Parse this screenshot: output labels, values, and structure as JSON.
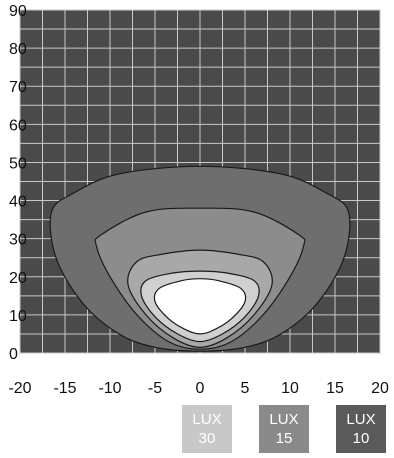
{
  "chart_data": {
    "type": "area",
    "title": "",
    "xlabel": "",
    "ylabel": "",
    "xlim": [
      -20,
      20
    ],
    "ylim": [
      0,
      90
    ],
    "x_ticks": [
      -20,
      -15,
      -10,
      -5,
      0,
      5,
      10,
      15,
      20
    ],
    "y_ticks": [
      0,
      10,
      20,
      30,
      40,
      50,
      60,
      70,
      80,
      90
    ],
    "grid": true,
    "background_color": "#4a4a4a",
    "grid_color": "#c8c8c8",
    "series": [
      {
        "color": "#6e6e6e",
        "points": [
          [
            0,
            49
          ],
          [
            9,
            47
          ],
          [
            14,
            42
          ],
          [
            16.5,
            37
          ],
          [
            16,
            25
          ],
          [
            13,
            13
          ],
          [
            9,
            5
          ],
          [
            5,
            1.5
          ],
          [
            0,
            0.5
          ],
          [
            -5,
            1.5
          ],
          [
            -9,
            5
          ],
          [
            -13,
            13
          ],
          [
            -16,
            25
          ],
          [
            -16.5,
            37
          ],
          [
            -14,
            42
          ],
          [
            -9,
            47
          ]
        ]
      },
      {
        "color": "#8c8c8c",
        "points": [
          [
            0,
            38
          ],
          [
            6,
            37
          ],
          [
            11,
            31
          ],
          [
            11.5,
            28
          ],
          [
            10,
            20
          ],
          [
            7,
            10
          ],
          [
            3.5,
            3
          ],
          [
            0,
            1
          ],
          [
            -3.5,
            3
          ],
          [
            -7,
            10
          ],
          [
            -10,
            20
          ],
          [
            -11.5,
            28
          ],
          [
            -11,
            31
          ],
          [
            -6,
            37
          ]
        ]
      },
      {
        "color": "#a8a8a8",
        "points": [
          [
            0,
            27
          ],
          [
            4,
            26
          ],
          [
            7,
            24
          ],
          [
            8,
            18
          ],
          [
            6,
            10
          ],
          [
            3,
            4
          ],
          [
            0,
            1.5
          ],
          [
            -3,
            4
          ],
          [
            -6,
            10
          ],
          [
            -8,
            18
          ],
          [
            -7,
            24
          ],
          [
            -4,
            26
          ]
        ]
      },
      {
        "color": "#d0d0d0",
        "points": [
          [
            0,
            21.5
          ],
          [
            3,
            21
          ],
          [
            6,
            19
          ],
          [
            6.5,
            15
          ],
          [
            5,
            9.5
          ],
          [
            2.5,
            5
          ],
          [
            0,
            3
          ],
          [
            -2.5,
            5
          ],
          [
            -5,
            9.5
          ],
          [
            -6.5,
            15
          ],
          [
            -6,
            19
          ],
          [
            -3,
            21
          ]
        ]
      },
      {
        "color": "#ffffff",
        "points": [
          [
            0,
            19.5
          ],
          [
            2,
            19
          ],
          [
            4.5,
            17
          ],
          [
            5,
            13.5
          ],
          [
            3.5,
            9
          ],
          [
            1.5,
            6
          ],
          [
            0,
            5
          ],
          [
            -1.5,
            6
          ],
          [
            -3.5,
            9
          ],
          [
            -5,
            13.5
          ],
          [
            -4.5,
            17
          ],
          [
            -2,
            19
          ]
        ]
      }
    ]
  },
  "legend": [
    {
      "top": "LUX",
      "bottom": "30",
      "color": "#c8c8c8"
    },
    {
      "top": "LUX",
      "bottom": "15",
      "color": "#8a8a8a"
    },
    {
      "top": "LUX",
      "bottom": "10",
      "color": "#5a5a5a"
    }
  ]
}
